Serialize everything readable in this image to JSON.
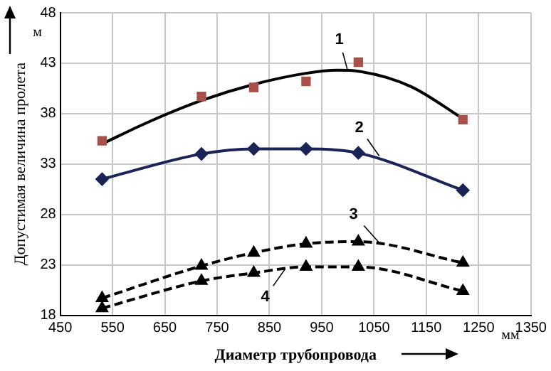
{
  "chart_data": {
    "type": "line",
    "xlabel": "Диаметр трубопровода",
    "ylabel": "Допустимая величина пролета",
    "xlim": [
      450,
      1350
    ],
    "xticks": [
      450,
      550,
      650,
      750,
      850,
      950,
      1050,
      1150,
      1250,
      1350
    ],
    "ylim": [
      18,
      48
    ],
    "yticks": [
      18,
      23,
      28,
      33,
      38,
      43,
      48
    ],
    "grid": true,
    "legend": false,
    "series": [
      {
        "type": "scatter",
        "color": "#a8514a",
        "marker": "square",
        "x": [
          530,
          720,
          820,
          920,
          1020,
          1220
        ],
        "values": [
          35.3,
          39.7,
          40.6,
          41.2,
          43.1,
          37.4
        ]
      },
      {
        "color": "#000000",
        "marker": "none",
        "line_style": "solid",
        "x": [
          530,
          620,
          720,
          820,
          920,
          980,
          1020,
          1120,
          1220
        ],
        "values": [
          35.0,
          37.2,
          39.3,
          40.9,
          42.0,
          42.3,
          42.2,
          40.7,
          37.5
        ]
      },
      {
        "type": "line",
        "color": "#1a2456",
        "marker": "diamond",
        "line_style": "solid",
        "x": [
          530,
          720,
          820,
          920,
          1020,
          1220
        ],
        "values": [
          31.5,
          34.0,
          34.5,
          34.5,
          34.1,
          30.4
        ]
      },
      {
        "type": "line",
        "color": "#000000",
        "marker": "triangle",
        "line_style": "dashed",
        "x": [
          530,
          720,
          820,
          920,
          1020,
          1220
        ],
        "values": [
          19.7,
          22.9,
          24.2,
          25.1,
          25.3,
          23.2
        ]
      },
      {
        "type": "line",
        "color": "#000000",
        "marker": "triangle",
        "line_style": "dashed",
        "x": [
          530,
          720,
          820,
          920,
          1020,
          1220
        ],
        "values": [
          18.7,
          21.4,
          22.2,
          22.8,
          22.8,
          20.4
        ]
      }
    ],
    "annotations": [
      "м",
      "мм",
      {
        "text": "1",
        "x": 1000,
        "y": 42.2
      },
      {
        "text": "2",
        "x": 1060,
        "y": 33.8
      },
      {
        "text": "3",
        "x": 1060,
        "y": 25.2
      },
      {
        "text": "4",
        "x": 880,
        "y": 22.6
      }
    ]
  }
}
